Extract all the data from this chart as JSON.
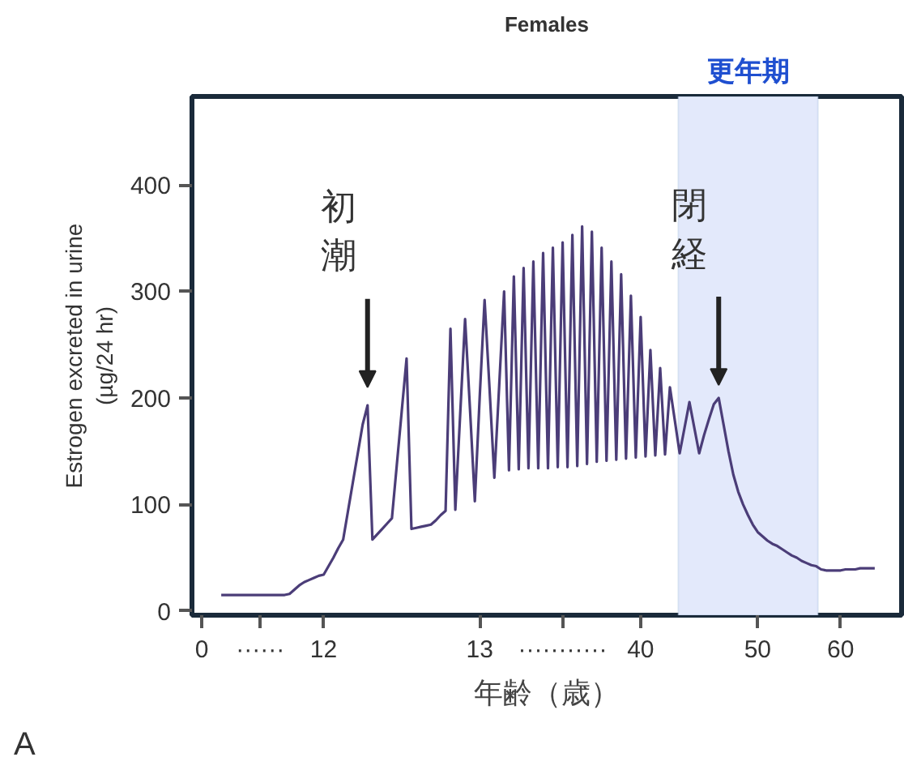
{
  "chart_data": {
    "type": "line",
    "title": "Females",
    "xlabel": "年齢（歳）",
    "ylabel": "Estrogen excreted in urine\n(µg/24 hr)",
    "categories": [
      "0",
      null,
      null,
      null,
      null,
      null,
      null,
      null,
      null,
      null,
      null,
      null,
      "······",
      null,
      null,
      null,
      null,
      null,
      null,
      null,
      null,
      null,
      null,
      null,
      null,
      "12",
      null,
      null,
      null,
      null,
      null,
      null,
      null,
      null,
      null,
      null,
      null,
      null,
      null,
      null,
      null,
      null,
      null,
      null,
      null,
      null,
      null,
      null,
      null,
      null,
      null,
      null,
      null,
      null,
      null,
      null,
      null,
      "13",
      null,
      null,
      null,
      null,
      null,
      null,
      null,
      null,
      null,
      null,
      null,
      null,
      null,
      null,
      null,
      null,
      "···········",
      null,
      null,
      null,
      null,
      null,
      null,
      null,
      null,
      null,
      null,
      null,
      null,
      null,
      null,
      null,
      "40",
      null,
      null,
      null,
      null,
      null,
      null,
      null,
      null,
      null,
      null,
      null,
      null,
      null,
      null,
      null,
      null,
      null,
      null,
      null,
      null,
      null,
      null,
      null,
      "50",
      null,
      null,
      null,
      null,
      null,
      null,
      null,
      null,
      null,
      null,
      null,
      null,
      null,
      null,
      null,
      null,
      "60",
      null,
      null,
      null,
      null,
      null,
      null,
      null
    ],
    "values": [
      null,
      null,
      null,
      null,
      15,
      15,
      15,
      15,
      15,
      15,
      15,
      15,
      15,
      15,
      15,
      15,
      15,
      15,
      16,
      20,
      24,
      27,
      29,
      31,
      33,
      34,
      42,
      50,
      59,
      67,
      94,
      121,
      148,
      175,
      193,
      67,
      72,
      77,
      82,
      87,
      137,
      187,
      237,
      77,
      78,
      79,
      80,
      81,
      85,
      90,
      94,
      265,
      95,
      185,
      274,
      190,
      103,
      201,
      292,
      210,
      125,
      212,
      300,
      132,
      314,
      133,
      322,
      134,
      328,
      134,
      336,
      134,
      341,
      135,
      346,
      135,
      353,
      136,
      361,
      138,
      356,
      140,
      341,
      141,
      328,
      142,
      316,
      143,
      296,
      144,
      276,
      145,
      245,
      146,
      228,
      147,
      210,
      179,
      148,
      172,
      196,
      172,
      148,
      165,
      180,
      194,
      200,
      175,
      150,
      128,
      112,
      100,
      90,
      81,
      74,
      70,
      66,
      63,
      61,
      58,
      55,
      52,
      50,
      47,
      45,
      43,
      42,
      39,
      38,
      38,
      38,
      38,
      39,
      39,
      39,
      40,
      40,
      40,
      40
    ],
    "color": "#4b3d78",
    "line_style": "solid",
    "marker": "none",
    "ylim": [
      -4,
      483
    ],
    "yticks": [
      0,
      100,
      200,
      300,
      400
    ],
    "grid": false,
    "annotations": [
      "更年期",
      "初潮",
      "閉経",
      "A"
    ]
  }
}
